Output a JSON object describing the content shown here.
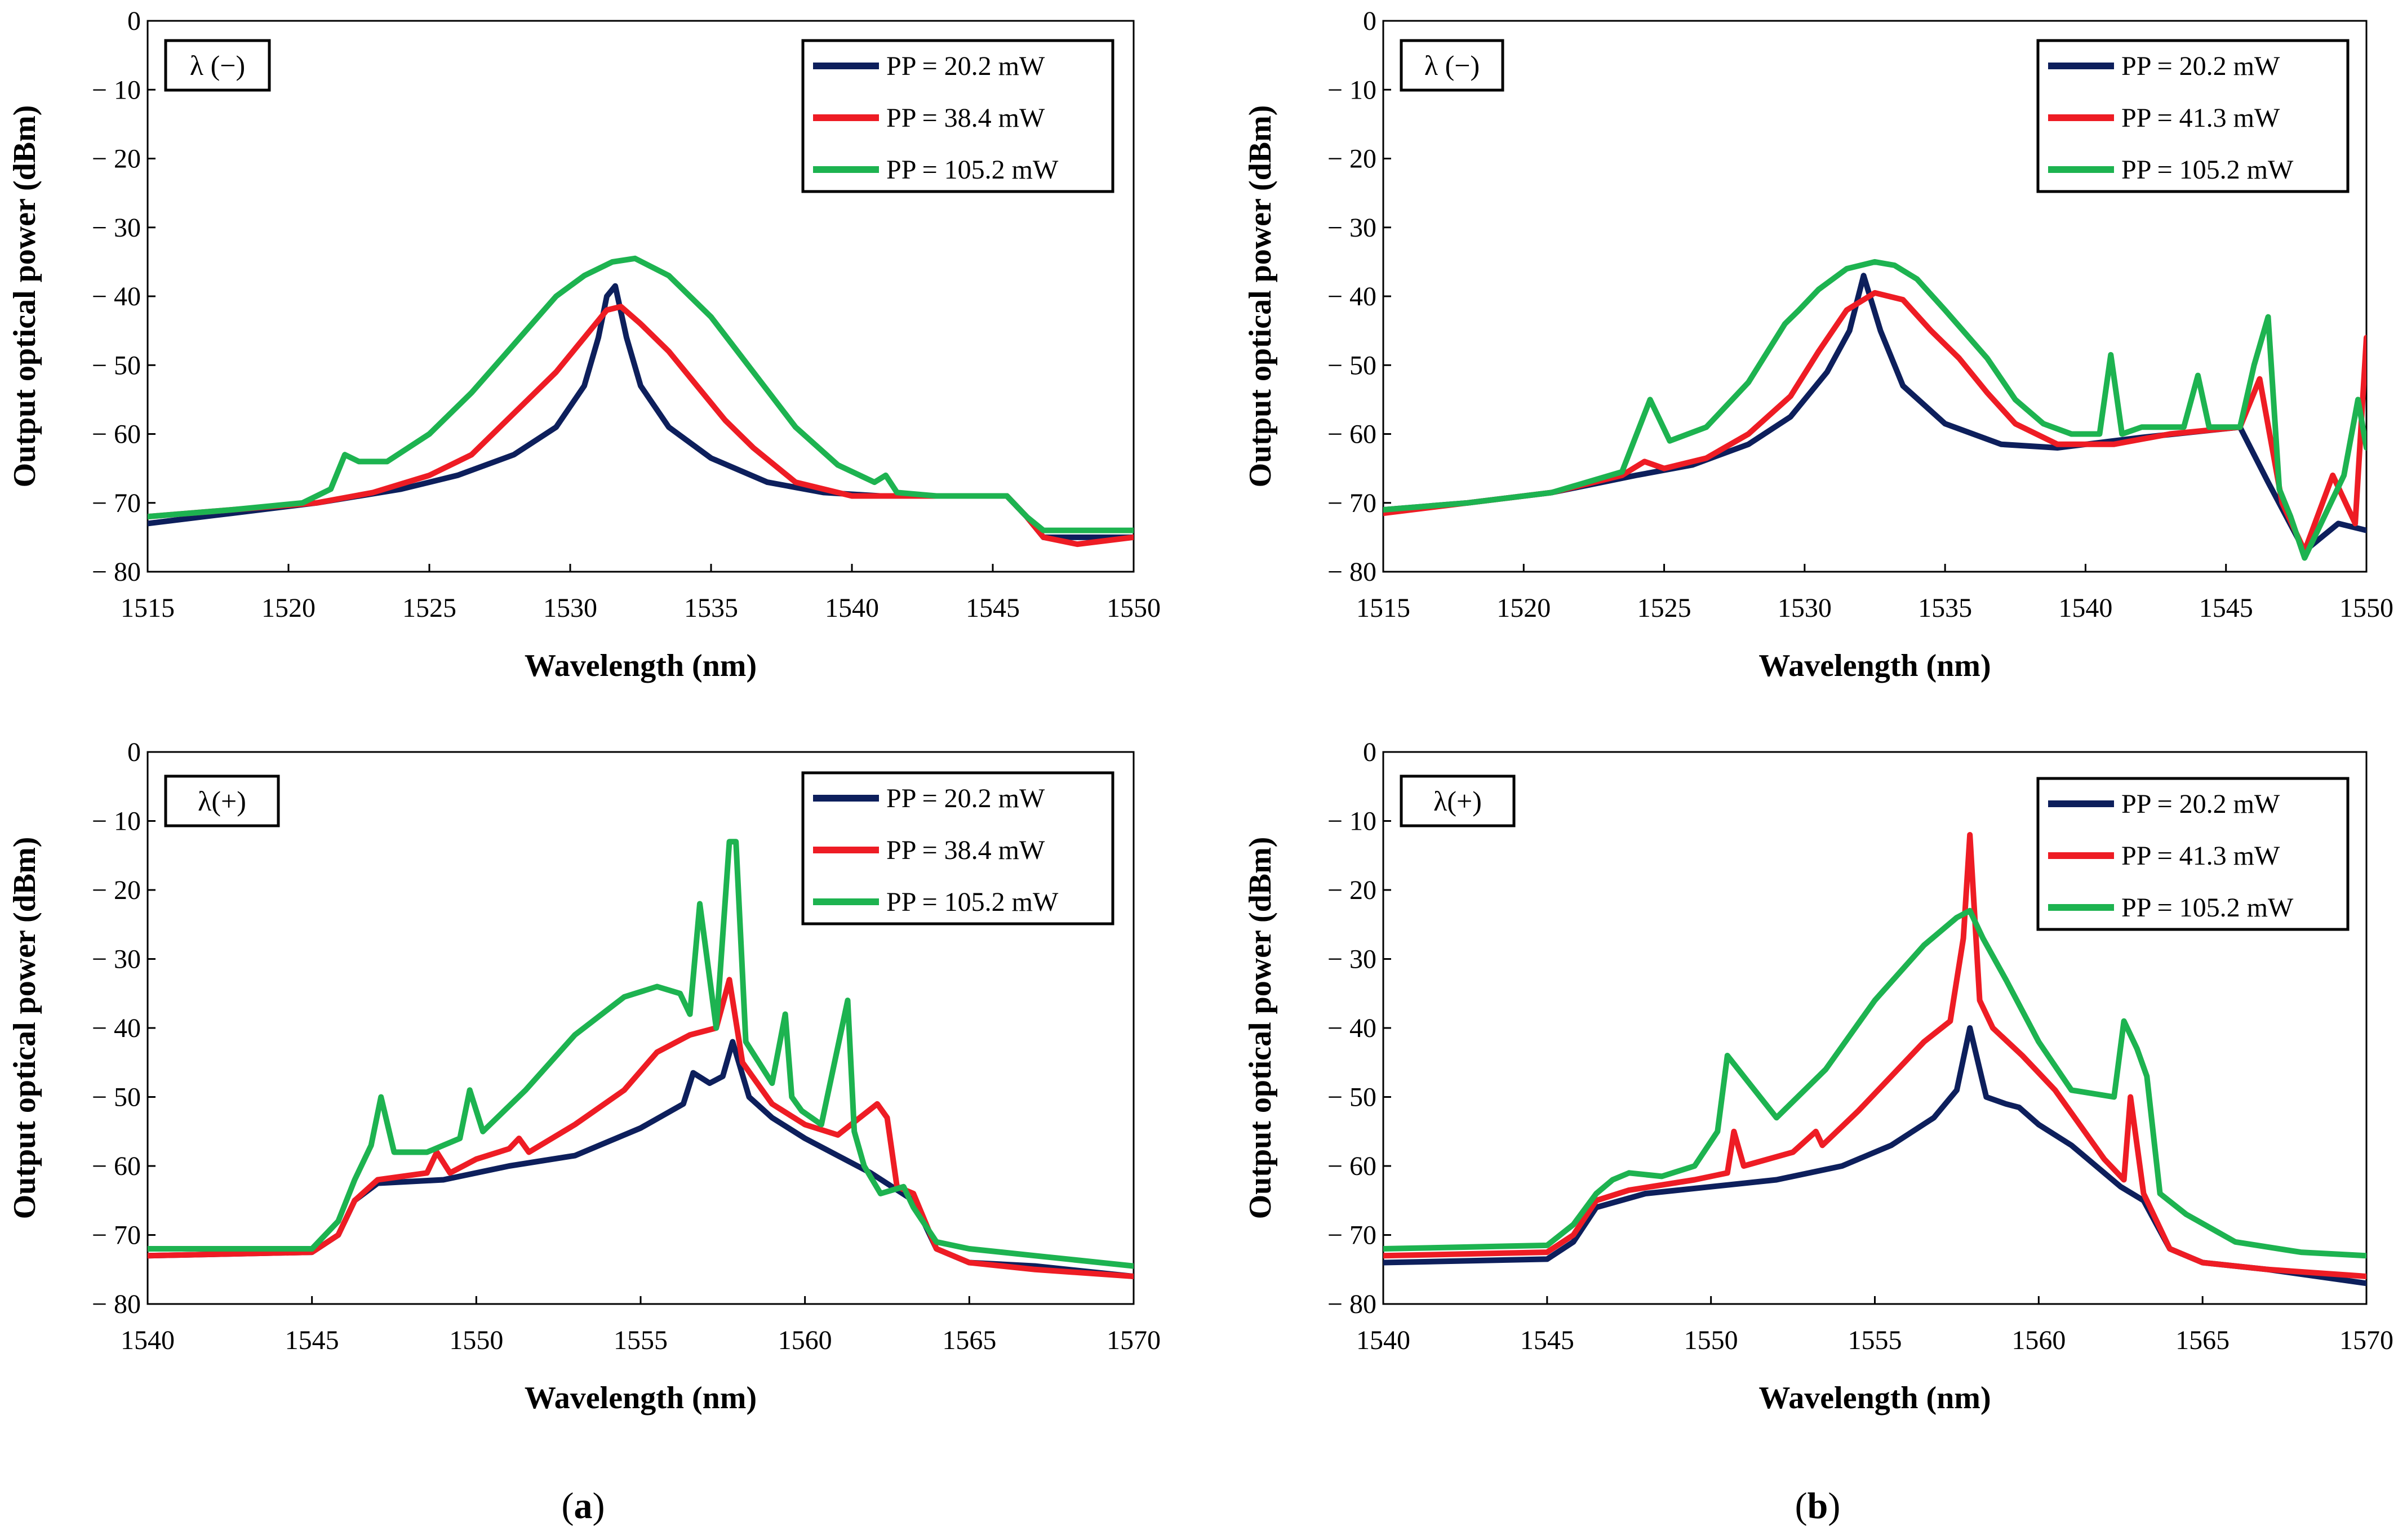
{
  "figure": {
    "panel_labels": [
      "(a)",
      "(b)"
    ],
    "panel_label_letters": [
      "a",
      "b"
    ]
  },
  "colors": {
    "navy": "#0d1f5c",
    "red": "#ee1c24",
    "green": "#1db350"
  },
  "chart_data": [
    {
      "type": "line",
      "id": "a-minus",
      "tag": "λ (−)",
      "xlabel": "Wavelength (nm)",
      "ylabel": "Output optical power (dBm)",
      "xlim": [
        1515,
        1550
      ],
      "ylim": [
        -80,
        0
      ],
      "xticks": [
        1515,
        1520,
        1525,
        1530,
        1535,
        1540,
        1545,
        1550
      ],
      "yticks": [
        0,
        -10,
        -20,
        -30,
        -40,
        -50,
        -60,
        -70,
        -80
      ],
      "ytick_labels": [
        "0",
        "− 10",
        "− 20",
        "− 30",
        "− 40",
        "− 50",
        "− 60",
        "− 70",
        "− 80"
      ],
      "series": [
        {
          "name": "PP = 20.2 mW",
          "color": "#0d1f5c",
          "x": [
            1515,
            1518,
            1521,
            1524,
            1526,
            1528,
            1529.5,
            1530.5,
            1531,
            1531.3,
            1531.6,
            1532,
            1532.5,
            1533.5,
            1535,
            1537,
            1539,
            1541,
            1543,
            1545.5,
            1546.2,
            1546.8,
            1548,
            1550
          ],
          "y": [
            -73,
            -71.5,
            -70,
            -68,
            -66,
            -63,
            -59,
            -53,
            -46,
            -40,
            -38.5,
            -46,
            -53,
            -59,
            -63.5,
            -67,
            -68.5,
            -69,
            -69,
            -69,
            -72,
            -75,
            -75,
            -75
          ]
        },
        {
          "name": "PP = 38.4 mW",
          "color": "#ee1c24",
          "x": [
            1515,
            1518,
            1521,
            1523,
            1525,
            1526.5,
            1527.5,
            1528.5,
            1529.5,
            1530.5,
            1531.3,
            1531.8,
            1532.5,
            1533.5,
            1534.5,
            1535.5,
            1536.5,
            1538,
            1540,
            1542,
            1545.5,
            1546.2,
            1546.8,
            1548,
            1550
          ],
          "y": [
            -72,
            -71,
            -70,
            -68.5,
            -66,
            -63,
            -59,
            -55,
            -51,
            -46,
            -42,
            -41.5,
            -44,
            -48,
            -53,
            -58,
            -62,
            -67,
            -69,
            -69,
            -69,
            -72,
            -75,
            -76,
            -75
          ]
        },
        {
          "name": "PP = 105.2 mW",
          "color": "#1db350",
          "x": [
            1515,
            1518,
            1520.5,
            1521.5,
            1522,
            1522.5,
            1523.5,
            1525,
            1526.5,
            1528,
            1529.5,
            1530.5,
            1531.5,
            1532.3,
            1533.5,
            1535,
            1536.5,
            1538,
            1539.5,
            1540.8,
            1541.2,
            1541.6,
            1543,
            1545.5,
            1546.2,
            1546.8,
            1548,
            1550
          ],
          "y": [
            -72,
            -71,
            -70,
            -68,
            -63,
            -64,
            -64,
            -60,
            -54,
            -47,
            -40,
            -37,
            -35,
            -34.5,
            -37,
            -43,
            -51,
            -59,
            -64.5,
            -67,
            -66,
            -68.5,
            -69,
            -69,
            -72,
            -74,
            -74,
            -74
          ]
        }
      ]
    },
    {
      "type": "line",
      "id": "b-minus",
      "tag": "λ (−)",
      "xlabel": "Wavelength (nm)",
      "ylabel": "Output optical power (dBm)",
      "xlim": [
        1515,
        1550
      ],
      "ylim": [
        -80,
        0
      ],
      "xticks": [
        1515,
        1520,
        1525,
        1530,
        1535,
        1540,
        1545,
        1550
      ],
      "yticks": [
        0,
        -10,
        -20,
        -30,
        -40,
        -50,
        -60,
        -70,
        -80
      ],
      "ytick_labels": [
        "0",
        "− 10",
        "− 20",
        "− 30",
        "− 40",
        "− 50",
        "− 60",
        "− 70",
        "− 80"
      ],
      "series": [
        {
          "name": "PP = 20.2 mW",
          "color": "#0d1f5c",
          "x": [
            1515,
            1518,
            1521,
            1524,
            1526,
            1528,
            1529.5,
            1530.8,
            1531.6,
            1532.1,
            1532.7,
            1533.5,
            1535,
            1537,
            1539,
            1542,
            1545.5,
            1546.5,
            1547.8,
            1549,
            1550
          ],
          "y": [
            -71,
            -70,
            -68.5,
            -66,
            -64.5,
            -61.5,
            -57.5,
            -51,
            -45,
            -37,
            -45,
            -53,
            -58.5,
            -61.5,
            -62,
            -60.5,
            -59,
            -67,
            -77,
            -73,
            -74
          ]
        },
        {
          "name": "PP = 41.3 mW",
          "color": "#ee1c24",
          "x": [
            1515,
            1518,
            1521,
            1523.5,
            1524.3,
            1525,
            1526.5,
            1528,
            1529.5,
            1530.5,
            1531.5,
            1532.5,
            1533.5,
            1534.5,
            1535.5,
            1536.5,
            1537.5,
            1539,
            1541,
            1543,
            1545.5,
            1546.2,
            1547,
            1547.8,
            1548.8,
            1549.6,
            1550
          ],
          "y": [
            -71.5,
            -70,
            -68.5,
            -66,
            -64,
            -65,
            -63.5,
            -60,
            -54.5,
            -48,
            -42,
            -39.5,
            -40.5,
            -45,
            -49,
            -54,
            -58.5,
            -61.5,
            -61.5,
            -60,
            -59,
            -52,
            -70,
            -77,
            -66,
            -73,
            -46
          ]
        },
        {
          "name": "PP = 105.2 mW",
          "color": "#1db350",
          "x": [
            1515,
            1518,
            1521,
            1523.5,
            1524.5,
            1525.2,
            1526.5,
            1528,
            1529.3,
            1529.8,
            1530.5,
            1531.5,
            1532.5,
            1533.2,
            1534,
            1535,
            1536.5,
            1537.5,
            1538.5,
            1539.5,
            1540.5,
            1540.9,
            1541.3,
            1542,
            1543.5,
            1544,
            1544.4,
            1545.5,
            1546,
            1546.5,
            1546.9,
            1547.3,
            1547.8,
            1548.5,
            1549.2,
            1549.7,
            1550
          ],
          "y": [
            -71,
            -70,
            -68.5,
            -65.5,
            -55,
            -61,
            -59,
            -52.5,
            -44,
            -42,
            -39,
            -36,
            -35,
            -35.5,
            -37.5,
            -42,
            -49,
            -55,
            -58.5,
            -60,
            -60,
            -48.5,
            -60,
            -59,
            -59,
            -51.5,
            -59,
            -59,
            -50,
            -43,
            -68,
            -72,
            -78,
            -72,
            -66,
            -55,
            -62
          ]
        }
      ]
    },
    {
      "type": "line",
      "id": "a-plus",
      "tag": "λ(+)",
      "xlabel": "Wavelength (nm)",
      "ylabel": "Output optical power (dBm)",
      "xlim": [
        1540,
        1570
      ],
      "ylim": [
        -80,
        0
      ],
      "xticks": [
        1540,
        1545,
        1550,
        1555,
        1560,
        1565,
        1570
      ],
      "yticks": [
        0,
        -10,
        -20,
        -30,
        -40,
        -50,
        -60,
        -70,
        -80
      ],
      "ytick_labels": [
        "0",
        "− 10",
        "− 20",
        "− 30",
        "− 40",
        "− 50",
        "− 60",
        "− 70",
        "− 80"
      ],
      "series": [
        {
          "name": "PP = 20.2 mW",
          "color": "#0d1f5c",
          "x": [
            1540,
            1545,
            1545.8,
            1546.3,
            1547,
            1549,
            1551,
            1553,
            1555,
            1556.3,
            1556.6,
            1557.1,
            1557.5,
            1557.8,
            1558.3,
            1559,
            1560,
            1562,
            1563.3,
            1564,
            1565,
            1567,
            1570
          ],
          "y": [
            -73,
            -72.5,
            -70,
            -65,
            -62.5,
            -62,
            -60,
            -58.5,
            -54.5,
            -51,
            -46.5,
            -48,
            -47,
            -42,
            -50,
            -53,
            -56,
            -61,
            -65,
            -72,
            -74,
            -74.5,
            -76
          ]
        },
        {
          "name": "PP = 38.4 mW",
          "color": "#ee1c24",
          "x": [
            1540,
            1545,
            1545.8,
            1546.3,
            1547,
            1548.5,
            1548.8,
            1549.2,
            1550,
            1551,
            1551.3,
            1551.6,
            1553,
            1554.5,
            1555.5,
            1556.5,
            1557.3,
            1557.7,
            1558.1,
            1559,
            1560,
            1561,
            1562.2,
            1562.5,
            1562.8,
            1563.3,
            1564,
            1565,
            1567,
            1570
          ],
          "y": [
            -73,
            -72.5,
            -70,
            -65,
            -62,
            -61,
            -58,
            -61,
            -59,
            -57.5,
            -56,
            -58,
            -54,
            -49,
            -43.5,
            -41,
            -40,
            -33,
            -45,
            -51,
            -54,
            -55.5,
            -51,
            -53,
            -63,
            -64,
            -72,
            -74,
            -75,
            -76
          ]
        },
        {
          "name": "PP = 105.2 mW",
          "color": "#1db350",
          "x": [
            1540,
            1545,
            1545.8,
            1546.3,
            1546.8,
            1547.1,
            1547.5,
            1548.5,
            1549.5,
            1549.8,
            1550.2,
            1551.5,
            1553,
            1554.5,
            1555.5,
            1556.2,
            1556.5,
            1556.8,
            1557.3,
            1557.7,
            1557.9,
            1558.2,
            1559,
            1559.4,
            1559.6,
            1559.9,
            1560.5,
            1561.3,
            1561.5,
            1561.8,
            1562.3,
            1563,
            1563.3,
            1564,
            1565,
            1567,
            1570
          ],
          "y": [
            -72,
            -72,
            -68,
            -62,
            -57,
            -50,
            -58,
            -58,
            -56,
            -49,
            -55,
            -49,
            -41,
            -35.5,
            -34,
            -35,
            -38,
            -22,
            -40,
            -13,
            -13,
            -42,
            -48,
            -38,
            -50,
            -52,
            -54,
            -36,
            -55,
            -60,
            -64,
            -63,
            -66,
            -71,
            -72,
            -73,
            -74.5
          ]
        }
      ]
    },
    {
      "type": "line",
      "id": "b-plus",
      "tag": "λ(+)",
      "xlabel": "Wavelength (nm)",
      "ylabel": "Output optical power (dBm)",
      "xlim": [
        1540,
        1570
      ],
      "ylim": [
        -80,
        0
      ],
      "xticks": [
        1540,
        1545,
        1550,
        1555,
        1560,
        1565,
        1570
      ],
      "yticks": [
        0,
        -10,
        -20,
        -30,
        -40,
        -50,
        -60,
        -70,
        -80
      ],
      "ytick_labels": [
        "0",
        "− 10",
        "− 20",
        "− 30",
        "− 40",
        "− 50",
        "− 60",
        "− 70",
        "− 80"
      ],
      "series": [
        {
          "name": "PP = 20.2 mW",
          "color": "#0d1f5c",
          "x": [
            1540,
            1545,
            1545.8,
            1546.5,
            1548,
            1550,
            1552,
            1554,
            1555.5,
            1556.8,
            1557.5,
            1557.9,
            1558.4,
            1559,
            1559.4,
            1560,
            1561,
            1562.5,
            1563.2,
            1564,
            1565,
            1567,
            1570
          ],
          "y": [
            -74,
            -73.5,
            -71,
            -66,
            -64,
            -63,
            -62,
            -60,
            -57,
            -53,
            -49,
            -40,
            -50,
            -51,
            -51.5,
            -54,
            -57,
            -63,
            -65,
            -72,
            -74,
            -75,
            -77
          ]
        },
        {
          "name": "PP = 41.3 mW",
          "color": "#ee1c24",
          "x": [
            1540,
            1545,
            1545.8,
            1546.5,
            1547.5,
            1549.5,
            1550.5,
            1550.7,
            1551,
            1552.5,
            1553.2,
            1553.4,
            1554.5,
            1555.5,
            1556.5,
            1557.3,
            1557.7,
            1557.9,
            1558.2,
            1558.6,
            1559.5,
            1560.5,
            1562,
            1562.6,
            1562.8,
            1563.2,
            1564,
            1565,
            1567,
            1570
          ],
          "y": [
            -73,
            -72.5,
            -70,
            -65,
            -63.5,
            -62,
            -61,
            -55,
            -60,
            -58,
            -55,
            -57,
            -52,
            -47,
            -42,
            -39,
            -27,
            -12,
            -36,
            -40,
            -44,
            -49,
            -59,
            -62,
            -50,
            -64,
            -72,
            -74,
            -75,
            -76
          ]
        },
        {
          "name": "PP = 105.2 mW",
          "color": "#1db350",
          "x": [
            1540,
            1545,
            1545.8,
            1546.5,
            1547,
            1547.5,
            1548.5,
            1549.5,
            1550.2,
            1550.5,
            1551,
            1552,
            1553.5,
            1555,
            1556.5,
            1557.5,
            1557.9,
            1558.3,
            1559,
            1560,
            1561,
            1562.3,
            1562.6,
            1563,
            1563.3,
            1563.7,
            1564.5,
            1566,
            1568,
            1570
          ],
          "y": [
            -72,
            -71.5,
            -68.5,
            -64,
            -62,
            -61,
            -61.5,
            -60,
            -55,
            -44,
            -47,
            -53,
            -46,
            -36,
            -28,
            -24,
            -23,
            -27,
            -33,
            -42,
            -49,
            -50,
            -39,
            -43,
            -47,
            -64,
            -67,
            -71,
            -72.5,
            -73
          ]
        }
      ]
    }
  ]
}
